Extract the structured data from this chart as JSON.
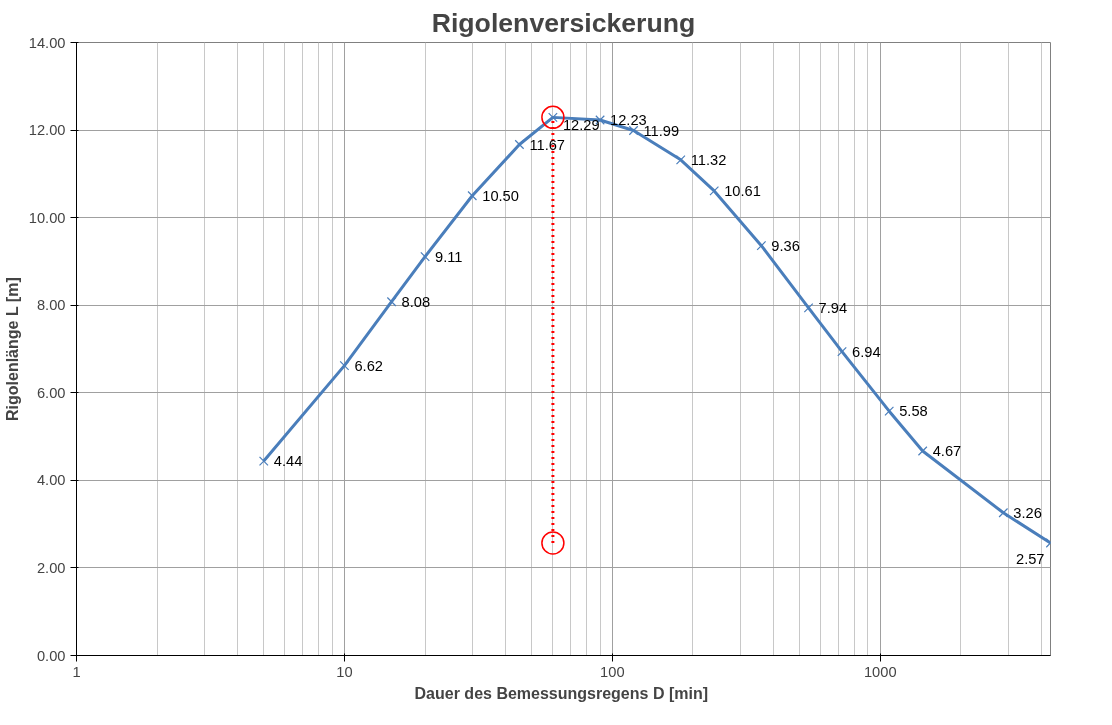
{
  "chart_data": {
    "type": "line",
    "title": "Rigolenversickerung",
    "xlabel": "Dauer des Bemessungsregens  D [min]",
    "ylabel": "Rigolenlänge L [m]",
    "log": "x",
    "xlim": [
      1,
      4320
    ],
    "xticks": [
      1,
      10,
      100,
      1000
    ],
    "ylim": [
      0,
      14
    ],
    "yticks": [
      {
        "value": 0,
        "label": "0.00"
      },
      {
        "value": 2,
        "label": "2.00"
      },
      {
        "value": 4,
        "label": "4.00"
      },
      {
        "value": 6,
        "label": "6.00"
      },
      {
        "value": 8,
        "label": "8.00"
      },
      {
        "value": 10,
        "label": "10.00"
      },
      {
        "value": 12,
        "label": "12.00"
      },
      {
        "value": 14,
        "label": "14.00"
      }
    ],
    "grid": true,
    "series": [
      {
        "color": "#4a7ebb",
        "marker": "cross",
        "line_style": "solid",
        "x": [
          5,
          10,
          15,
          20,
          30,
          45,
          60,
          90,
          120,
          180,
          240,
          360,
          540,
          720,
          1080,
          1440,
          2880,
          4320
        ],
        "values": [
          4.44,
          6.62,
          8.08,
          9.11,
          10.5,
          11.67,
          12.29,
          12.23,
          11.99,
          11.32,
          10.61,
          9.36,
          7.94,
          6.94,
          5.58,
          4.67,
          3.26,
          2.57
        ],
        "value_labels": [
          "4.44",
          "6.62",
          "8.08",
          "9.11",
          "10.50",
          "11.67",
          "12.29",
          "12.23",
          "11.99",
          "11.32",
          "10.61",
          "9.36",
          "7.94",
          "6.94",
          "5.58",
          "4.67",
          "3.26",
          "2.57"
        ]
      },
      {
        "color": "#ff0000",
        "marker": "circle",
        "line_style": "dotted",
        "x": [
          60,
          60
        ],
        "values": [
          2.57,
          12.29
        ]
      }
    ]
  }
}
